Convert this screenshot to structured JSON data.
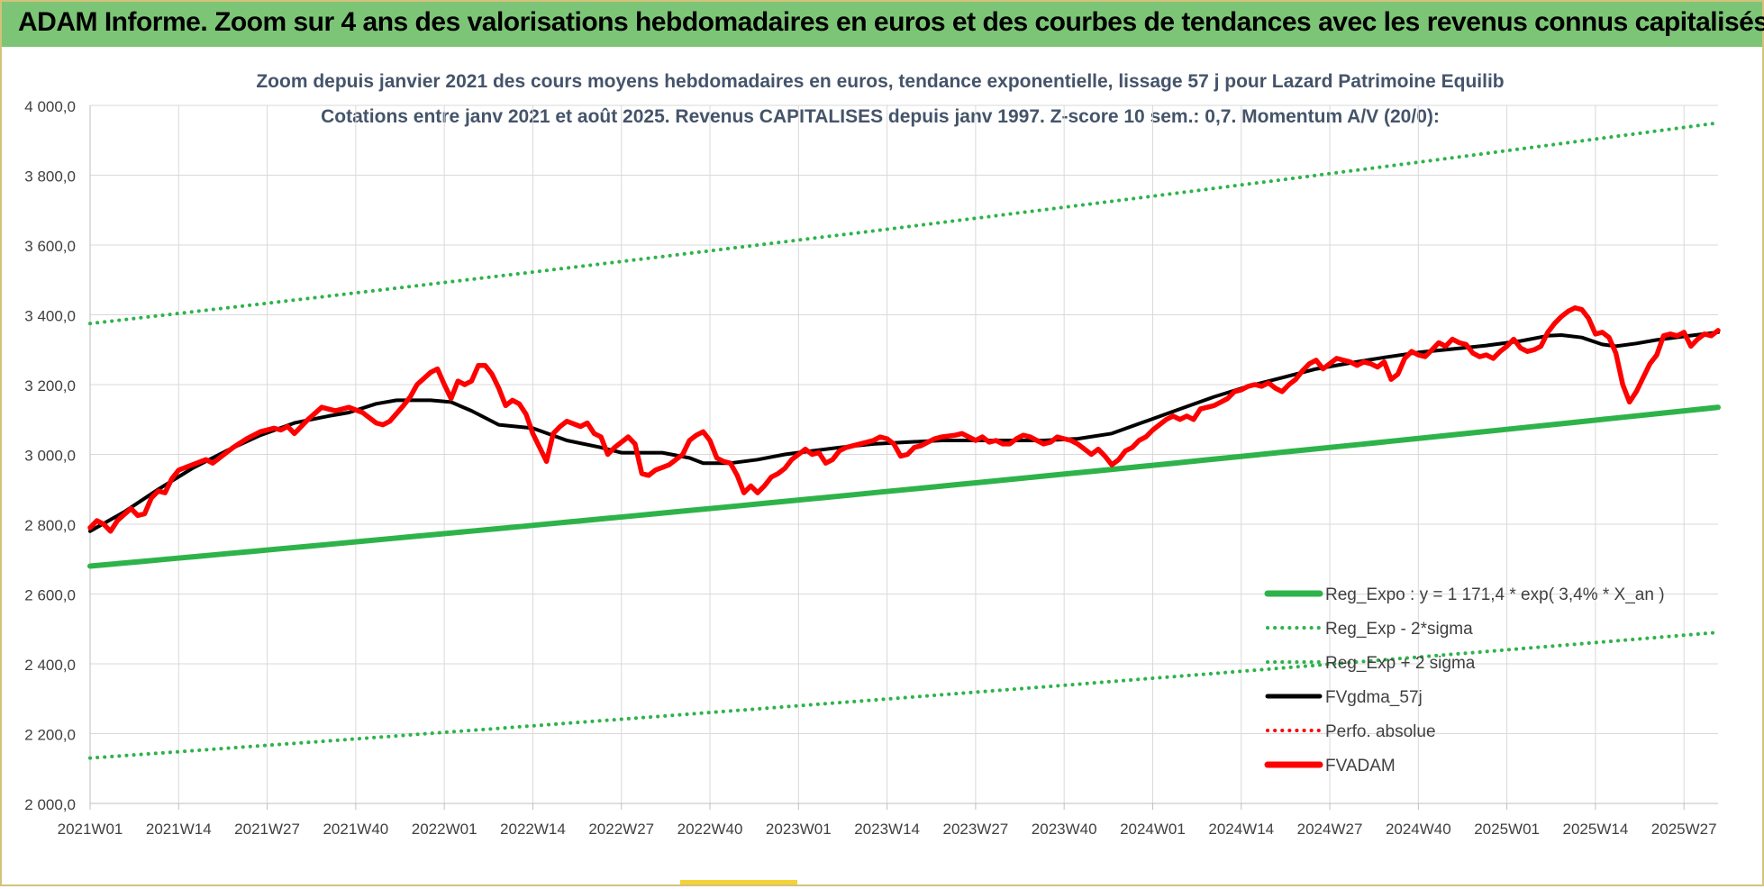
{
  "header": {
    "title": "ADAM Informe. Zoom sur 4 ans des valorisations hebdomadaires en euros et des courbes de tendances avec les revenus connus capitalisés"
  },
  "chart_data": {
    "type": "line",
    "title_line1": "Zoom depuis janvier 2021 des cours moyens hebdomadaires en euros, tendance exponentielle, lissage 57 j pour Lazard Patrimoine Equilib",
    "title_line2": "Cotations entre janv 2021 et août 2025. Revenus CAPITALISES depuis janv 1997. Z-score 10 sem.: 0,7. Momentum A/V (20/0):",
    "ylim": [
      2000,
      4000
    ],
    "y_ticks": [
      "4 000,0",
      "3 800,0",
      "3 600,0",
      "3 400,0",
      "3 200,0",
      "3 000,0",
      "2 800,0",
      "2 600,0",
      "2 400,0",
      "2 200,0",
      "2 000,0"
    ],
    "y_tick_values": [
      4000,
      3800,
      3600,
      3400,
      3200,
      3000,
      2800,
      2600,
      2400,
      2200,
      2000
    ],
    "x_ticks": [
      "2021W01",
      "2021W14",
      "2021W27",
      "2021W40",
      "2022W01",
      "2022W14",
      "2022W27",
      "2022W40",
      "2023W01",
      "2023W14",
      "2023W27",
      "2023W40",
      "2024W01",
      "2024W14",
      "2024W27",
      "2024W40",
      "2025W01",
      "2025W14",
      "2025W27"
    ],
    "x_tick_weeks": [
      0,
      13,
      26,
      39,
      52,
      65,
      78,
      91,
      104,
      117,
      130,
      143,
      156,
      169,
      182,
      195,
      208,
      221,
      234
    ],
    "x_range_weeks": [
      0,
      239
    ],
    "grid": true,
    "legend_position": "bottom-right",
    "series": [
      {
        "name": "Reg_Expo : y = 1 171,4 * exp( 3,4% *  X_an )",
        "color": "#2eb34a",
        "style": "solid",
        "start": 2680,
        "end": 3135
      },
      {
        "name": "Reg_Exp - 2*sigma",
        "color": "#2eb34a",
        "style": "dotted",
        "start": 2130,
        "end": 2490
      },
      {
        "name": "Reg_Exp + 2 sigma",
        "color": "#2eb34a",
        "style": "dotted",
        "start": 3375,
        "end": 3950
      },
      {
        "name": "FVgdma_57j",
        "color": "#000000",
        "style": "solid",
        "points": [
          [
            0,
            2780
          ],
          [
            5,
            2835
          ],
          [
            10,
            2900
          ],
          [
            15,
            2960
          ],
          [
            20,
            3010
          ],
          [
            25,
            3055
          ],
          [
            30,
            3090
          ],
          [
            35,
            3110
          ],
          [
            38,
            3120
          ],
          [
            42,
            3145
          ],
          [
            45,
            3155
          ],
          [
            50,
            3155
          ],
          [
            53,
            3150
          ],
          [
            56,
            3125
          ],
          [
            60,
            3085
          ],
          [
            65,
            3075
          ],
          [
            70,
            3040
          ],
          [
            75,
            3020
          ],
          [
            78,
            3005
          ],
          [
            84,
            3005
          ],
          [
            88,
            2990
          ],
          [
            90,
            2975
          ],
          [
            94,
            2975
          ],
          [
            98,
            2985
          ],
          [
            102,
            3000
          ],
          [
            106,
            3010
          ],
          [
            110,
            3020
          ],
          [
            115,
            3030
          ],
          [
            120,
            3035
          ],
          [
            125,
            3040
          ],
          [
            130,
            3040
          ],
          [
            135,
            3040
          ],
          [
            140,
            3040
          ],
          [
            145,
            3045
          ],
          [
            150,
            3060
          ],
          [
            155,
            3095
          ],
          [
            160,
            3130
          ],
          [
            165,
            3165
          ],
          [
            170,
            3195
          ],
          [
            175,
            3220
          ],
          [
            180,
            3245
          ],
          [
            185,
            3262
          ],
          [
            190,
            3278
          ],
          [
            195,
            3292
          ],
          [
            200,
            3302
          ],
          [
            205,
            3312
          ],
          [
            210,
            3325
          ],
          [
            214,
            3340
          ],
          [
            216,
            3342
          ],
          [
            219,
            3335
          ],
          [
            222,
            3315
          ],
          [
            224,
            3310
          ],
          [
            227,
            3318
          ],
          [
            230,
            3328
          ],
          [
            234,
            3338
          ],
          [
            239,
            3350
          ]
        ]
      },
      {
        "name": "Perfo. absolue",
        "color": "#ff0000",
        "style": "dotted",
        "points": []
      },
      {
        "name": "FVADAM",
        "color": "#ff0000",
        "style": "solid",
        "points": [
          [
            0,
            2790
          ],
          [
            1,
            2810
          ],
          [
            2,
            2800
          ],
          [
            3,
            2780
          ],
          [
            4,
            2810
          ],
          [
            6,
            2845
          ],
          [
            7,
            2825
          ],
          [
            8,
            2830
          ],
          [
            9,
            2875
          ],
          [
            10,
            2895
          ],
          [
            11,
            2890
          ],
          [
            12,
            2930
          ],
          [
            13,
            2955
          ],
          [
            15,
            2970
          ],
          [
            17,
            2985
          ],
          [
            18,
            2975
          ],
          [
            19,
            2990
          ],
          [
            21,
            3020
          ],
          [
            23,
            3045
          ],
          [
            25,
            3065
          ],
          [
            27,
            3075
          ],
          [
            28,
            3070
          ],
          [
            29,
            3080
          ],
          [
            30,
            3060
          ],
          [
            32,
            3100
          ],
          [
            34,
            3135
          ],
          [
            36,
            3125
          ],
          [
            38,
            3135
          ],
          [
            40,
            3120
          ],
          [
            42,
            3090
          ],
          [
            43,
            3085
          ],
          [
            44,
            3095
          ],
          [
            46,
            3140
          ],
          [
            47,
            3165
          ],
          [
            48,
            3200
          ],
          [
            50,
            3235
          ],
          [
            51,
            3245
          ],
          [
            52,
            3200
          ],
          [
            53,
            3160
          ],
          [
            54,
            3210
          ],
          [
            55,
            3200
          ],
          [
            56,
            3210
          ],
          [
            57,
            3255
          ],
          [
            58,
            3255
          ],
          [
            59,
            3230
          ],
          [
            60,
            3190
          ],
          [
            61,
            3140
          ],
          [
            62,
            3155
          ],
          [
            63,
            3145
          ],
          [
            64,
            3115
          ],
          [
            65,
            3060
          ],
          [
            66,
            3020
          ],
          [
            67,
            2980
          ],
          [
            68,
            3060
          ],
          [
            69,
            3080
          ],
          [
            70,
            3095
          ],
          [
            72,
            3080
          ],
          [
            73,
            3090
          ],
          [
            74,
            3060
          ],
          [
            75,
            3050
          ],
          [
            76,
            3000
          ],
          [
            77,
            3020
          ],
          [
            79,
            3050
          ],
          [
            80,
            3030
          ],
          [
            81,
            2945
          ],
          [
            82,
            2940
          ],
          [
            83,
            2955
          ],
          [
            85,
            2970
          ],
          [
            86,
            2985
          ],
          [
            87,
            3000
          ],
          [
            88,
            3040
          ],
          [
            89,
            3055
          ],
          [
            90,
            3065
          ],
          [
            91,
            3040
          ],
          [
            92,
            2990
          ],
          [
            93,
            2980
          ],
          [
            94,
            2975
          ],
          [
            95,
            2940
          ],
          [
            96,
            2890
          ],
          [
            97,
            2910
          ],
          [
            98,
            2890
          ],
          [
            99,
            2910
          ],
          [
            100,
            2935
          ],
          [
            101,
            2945
          ],
          [
            102,
            2960
          ],
          [
            103,
            2985
          ],
          [
            104,
            3000
          ],
          [
            105,
            3015
          ],
          [
            106,
            3000
          ],
          [
            107,
            3005
          ],
          [
            108,
            2975
          ],
          [
            109,
            2985
          ],
          [
            110,
            3010
          ],
          [
            111,
            3020
          ],
          [
            113,
            3030
          ],
          [
            115,
            3040
          ],
          [
            116,
            3050
          ],
          [
            117,
            3045
          ],
          [
            118,
            3030
          ],
          [
            119,
            2995
          ],
          [
            120,
            3000
          ],
          [
            121,
            3020
          ],
          [
            122,
            3025
          ],
          [
            124,
            3045
          ],
          [
            125,
            3050
          ],
          [
            127,
            3055
          ],
          [
            128,
            3060
          ],
          [
            129,
            3050
          ],
          [
            130,
            3040
          ],
          [
            131,
            3050
          ],
          [
            132,
            3035
          ],
          [
            133,
            3040
          ],
          [
            134,
            3030
          ],
          [
            135,
            3030
          ],
          [
            136,
            3045
          ],
          [
            137,
            3055
          ],
          [
            138,
            3050
          ],
          [
            139,
            3040
          ],
          [
            140,
            3030
          ],
          [
            141,
            3035
          ],
          [
            142,
            3050
          ],
          [
            143,
            3045
          ],
          [
            144,
            3040
          ],
          [
            145,
            3030
          ],
          [
            146,
            3015
          ],
          [
            147,
            3000
          ],
          [
            148,
            3015
          ],
          [
            149,
            2995
          ],
          [
            150,
            2970
          ],
          [
            151,
            2985
          ],
          [
            152,
            3010
          ],
          [
            153,
            3020
          ],
          [
            154,
            3040
          ],
          [
            155,
            3050
          ],
          [
            156,
            3070
          ],
          [
            157,
            3085
          ],
          [
            158,
            3100
          ],
          [
            159,
            3110
          ],
          [
            160,
            3100
          ],
          [
            161,
            3110
          ],
          [
            162,
            3100
          ],
          [
            163,
            3130
          ],
          [
            164,
            3135
          ],
          [
            165,
            3140
          ],
          [
            166,
            3150
          ],
          [
            167,
            3160
          ],
          [
            168,
            3180
          ],
          [
            169,
            3185
          ],
          [
            170,
            3195
          ],
          [
            171,
            3200
          ],
          [
            172,
            3195
          ],
          [
            173,
            3205
          ],
          [
            174,
            3190
          ],
          [
            175,
            3180
          ],
          [
            176,
            3200
          ],
          [
            177,
            3215
          ],
          [
            178,
            3240
          ],
          [
            179,
            3260
          ],
          [
            180,
            3270
          ],
          [
            181,
            3245
          ],
          [
            182,
            3260
          ],
          [
            183,
            3275
          ],
          [
            184,
            3270
          ],
          [
            185,
            3265
          ],
          [
            186,
            3255
          ],
          [
            187,
            3265
          ],
          [
            188,
            3260
          ],
          [
            189,
            3250
          ],
          [
            190,
            3265
          ],
          [
            191,
            3215
          ],
          [
            192,
            3230
          ],
          [
            193,
            3275
          ],
          [
            194,
            3295
          ],
          [
            195,
            3285
          ],
          [
            196,
            3280
          ],
          [
            197,
            3300
          ],
          [
            198,
            3320
          ],
          [
            199,
            3310
          ],
          [
            200,
            3330
          ],
          [
            201,
            3320
          ],
          [
            202,
            3315
          ],
          [
            203,
            3290
          ],
          [
            204,
            3280
          ],
          [
            205,
            3285
          ],
          [
            206,
            3275
          ],
          [
            207,
            3295
          ],
          [
            208,
            3310
          ],
          [
            209,
            3330
          ],
          [
            210,
            3305
          ],
          [
            211,
            3295
          ],
          [
            212,
            3300
          ],
          [
            213,
            3310
          ],
          [
            214,
            3350
          ],
          [
            215,
            3375
          ],
          [
            216,
            3395
          ],
          [
            217,
            3410
          ],
          [
            218,
            3420
          ],
          [
            219,
            3415
          ],
          [
            220,
            3390
          ],
          [
            221,
            3345
          ],
          [
            222,
            3350
          ],
          [
            223,
            3335
          ],
          [
            224,
            3290
          ],
          [
            225,
            3200
          ],
          [
            226,
            3150
          ],
          [
            227,
            3180
          ],
          [
            228,
            3220
          ],
          [
            229,
            3260
          ],
          [
            230,
            3285
          ],
          [
            231,
            3340
          ],
          [
            232,
            3345
          ],
          [
            233,
            3340
          ],
          [
            234,
            3350
          ],
          [
            235,
            3310
          ],
          [
            236,
            3330
          ],
          [
            237,
            3345
          ],
          [
            238,
            3340
          ],
          [
            239,
            3355
          ]
        ]
      }
    ]
  }
}
